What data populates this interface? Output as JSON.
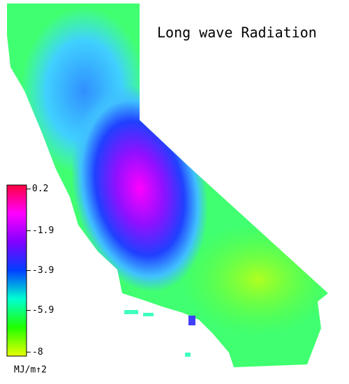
{
  "chart_data": {
    "type": "map",
    "title": "Long wave Radiation",
    "colorbar": {
      "label": "MJ/m↑2",
      "ticks": [
        0.2,
        -1.9,
        -3.9,
        -5.9,
        -8.0
      ],
      "clim": [
        -8.2,
        0.4
      ],
      "colors": [
        "#e8ff00",
        "#20ff00",
        "#00ffd0",
        "#0040ff",
        "#8000ff",
        "#ff00ff",
        "#ff0040"
      ]
    }
  }
}
